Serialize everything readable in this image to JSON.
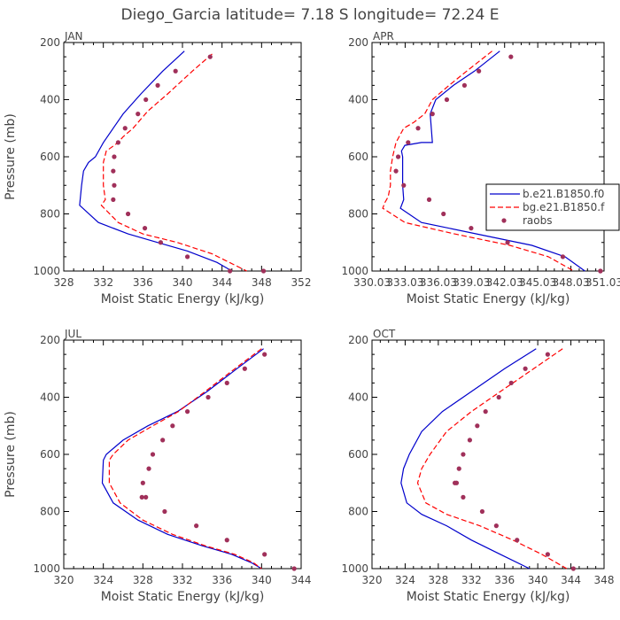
{
  "page_title": "Diego_Garcia   latitude= 7.18 S longitude= 72.24 E",
  "chart_data": [
    {
      "type": "line",
      "title": "JAN",
      "xlabel": "Moist Static Energy (kJ/kg)",
      "ylabel": "Pressure (mb)",
      "xlim": [
        328,
        352
      ],
      "ylim": [
        1000,
        200
      ],
      "y_inverted": true,
      "x_tick_labels": [
        "328",
        "332",
        "336",
        "340",
        "344",
        "348",
        "352"
      ],
      "x_ticks": [
        328,
        332,
        336,
        340,
        344,
        348,
        352
      ],
      "y_tick_labels": [
        "200",
        "400",
        "600",
        "800",
        "1000"
      ],
      "y_ticks": [
        200,
        400,
        600,
        800,
        1000
      ],
      "series": [
        {
          "style": "solid",
          "color": "#0000cc",
          "x": [
            340.2,
            338.0,
            335.8,
            334.0,
            333.0,
            332.0,
            331.2,
            330.5,
            330.0,
            329.8,
            329.6,
            331.5,
            334.5,
            337.5,
            340.5,
            343.5,
            345.0
          ],
          "y": [
            230,
            300,
            380,
            450,
            500,
            550,
            600,
            620,
            650,
            700,
            770,
            830,
            870,
            900,
            930,
            970,
            1000
          ]
        },
        {
          "style": "dashed",
          "color": "#ff0000",
          "x": [
            343.0,
            341.0,
            338.5,
            336.5,
            335.0,
            334.0,
            333.5,
            332.3,
            332.0,
            332.0,
            332.2,
            331.8,
            333.5,
            336.0,
            339.5,
            343.0,
            346.5
          ],
          "y": [
            240,
            300,
            380,
            440,
            500,
            530,
            550,
            580,
            620,
            700,
            750,
            770,
            830,
            870,
            900,
            940,
            1000
          ]
        },
        {
          "style": "markers",
          "color": "#a0305a",
          "x": [
            342.8,
            339.3,
            337.5,
            336.3,
            335.5,
            334.2,
            333.5,
            333.1,
            333.0,
            333.1,
            333.0,
            334.5,
            336.2,
            337.8,
            340.5,
            344.8,
            348.2
          ],
          "y": [
            250,
            300,
            350,
            400,
            450,
            500,
            550,
            600,
            650,
            700,
            750,
            800,
            850,
            900,
            950,
            1000,
            1000
          ]
        }
      ]
    },
    {
      "type": "line",
      "title": "APR",
      "xlabel": "Moist Static Energy (kJ/kg)",
      "ylabel": "",
      "xlim": [
        330.03,
        351.03
      ],
      "ylim": [
        1000,
        200
      ],
      "y_inverted": true,
      "x_tick_labels": [
        "330.03",
        "333.03",
        "336.03",
        "339.03",
        "342.03",
        "345.03",
        "348.03",
        "351.03"
      ],
      "x_ticks": [
        330.03,
        333.03,
        336.03,
        339.03,
        342.03,
        345.03,
        348.03,
        351.03
      ],
      "y_tick_labels": [
        "200",
        "400",
        "600",
        "800",
        "1000"
      ],
      "y_ticks": [
        200,
        400,
        600,
        800,
        1000
      ],
      "legend_location": "right",
      "legend": [
        "b.e21.B1850.f0",
        "bg.e21.B1850.f",
        "raobs"
      ],
      "series": [
        {
          "name": "b.e21.B1850.f0",
          "style": "solid",
          "color": "#0000cc",
          "x": [
            341.6,
            339.3,
            337.4,
            335.8,
            335.3,
            335.5,
            334.5,
            333.0,
            332.7,
            332.8,
            332.8,
            332.8,
            332.9,
            332.6,
            334.5,
            339.5,
            344.5,
            347.5,
            349.3
          ],
          "y": [
            230,
            300,
            350,
            400,
            450,
            550,
            550,
            560,
            580,
            600,
            650,
            700,
            750,
            780,
            830,
            870,
            910,
            950,
            1000
          ]
        },
        {
          "name": "bg.e21.B1850.f",
          "style": "dashed",
          "color": "#ff0000",
          "x": [
            340.9,
            338.6,
            337.0,
            335.5,
            334.8,
            333.8,
            332.9,
            332.2,
            331.9,
            331.7,
            331.7,
            331.5,
            331.2,
            331.0,
            333.0,
            337.5,
            342.5,
            346.0,
            348.3
          ],
          "y": [
            230,
            300,
            350,
            400,
            450,
            480,
            500,
            550,
            600,
            650,
            700,
            740,
            760,
            780,
            830,
            870,
            910,
            950,
            1000
          ]
        },
        {
          "name": "raobs",
          "style": "markers",
          "color": "#a0305a",
          "x": [
            342.6,
            339.7,
            338.4,
            336.8,
            335.5,
            334.2,
            333.3,
            332.4,
            332.2,
            332.9,
            335.2,
            336.5,
            339.0,
            342.3,
            347.3,
            350.7,
            350.7
          ],
          "y": [
            250,
            300,
            350,
            400,
            450,
            500,
            550,
            600,
            650,
            700,
            750,
            800,
            850,
            900,
            950,
            1000,
            1000
          ]
        }
      ]
    },
    {
      "type": "line",
      "title": "JUL",
      "xlabel": "Moist Static Energy (kJ/kg)",
      "ylabel": "Pressure (mb)",
      "xlim": [
        320,
        344
      ],
      "ylim": [
        1000,
        200
      ],
      "y_inverted": true,
      "x_tick_labels": [
        "320",
        "324",
        "328",
        "332",
        "336",
        "340",
        "344"
      ],
      "x_ticks": [
        320,
        324,
        328,
        332,
        336,
        340,
        344
      ],
      "y_tick_labels": [
        "200",
        "400",
        "600",
        "800",
        "1000"
      ],
      "y_ticks": [
        200,
        400,
        600,
        800,
        1000
      ],
      "series": [
        {
          "style": "solid",
          "color": "#0000cc",
          "x": [
            340.2,
            337.5,
            334.5,
            331.5,
            328.5,
            326.0,
            324.3,
            324.0,
            323.9,
            325.0,
            327.5,
            330.5,
            334.0,
            337.0,
            339.0,
            340.0
          ],
          "y": [
            230,
            300,
            380,
            450,
            500,
            550,
            600,
            620,
            700,
            770,
            830,
            880,
            920,
            950,
            980,
            1000
          ]
        },
        {
          "style": "dashed",
          "color": "#ff0000",
          "x": [
            340.0,
            337.3,
            334.3,
            331.6,
            329.0,
            326.5,
            325.0,
            324.6,
            324.6,
            325.7,
            328.0,
            331.0,
            334.3,
            337.3,
            339.2,
            340.0
          ],
          "y": [
            230,
            300,
            380,
            450,
            500,
            550,
            600,
            620,
            700,
            770,
            830,
            880,
            920,
            950,
            980,
            1000
          ]
        },
        {
          "style": "markers",
          "color": "#a0305a",
          "x": [
            340.3,
            338.3,
            336.5,
            334.6,
            332.5,
            331.0,
            330.0,
            329.0,
            328.6,
            328.0,
            327.9,
            328.3,
            330.2,
            333.4,
            336.5,
            340.3,
            343.3
          ],
          "y": [
            250,
            300,
            350,
            400,
            450,
            500,
            550,
            600,
            650,
            700,
            750,
            750,
            800,
            850,
            900,
            950,
            1000
          ]
        }
      ]
    },
    {
      "type": "line",
      "title": "OCT",
      "xlabel": "Moist Static Energy (kJ/kg)",
      "ylabel": "",
      "xlim": [
        320,
        348
      ],
      "ylim": [
        1000,
        200
      ],
      "y_inverted": true,
      "x_tick_labels": [
        "320",
        "324",
        "328",
        "332",
        "336",
        "340",
        "344",
        "348"
      ],
      "x_ticks": [
        320,
        324,
        328,
        332,
        336,
        340,
        344,
        348
      ],
      "y_tick_labels": [
        "200",
        "400",
        "600",
        "800",
        "1000"
      ],
      "y_ticks": [
        200,
        400,
        600,
        800,
        1000
      ],
      "series": [
        {
          "style": "solid",
          "color": "#0000cc",
          "x": [
            339.8,
            336.0,
            332.0,
            328.5,
            326.0,
            324.5,
            323.8,
            323.5,
            324.2,
            326.0,
            329.0,
            332.0,
            335.5,
            339.0
          ],
          "y": [
            230,
            300,
            380,
            450,
            520,
            600,
            650,
            700,
            770,
            810,
            850,
            900,
            950,
            1000
          ]
        },
        {
          "style": "dashed",
          "color": "#ff0000",
          "x": [
            343.0,
            339.5,
            335.5,
            332.0,
            329.0,
            327.0,
            326.0,
            325.5,
            326.5,
            329.0,
            333.0,
            337.0,
            340.5,
            343.5
          ],
          "y": [
            230,
            300,
            380,
            450,
            520,
            600,
            650,
            700,
            770,
            810,
            850,
            900,
            950,
            1000
          ]
        },
        {
          "style": "markers",
          "color": "#a0305a",
          "x": [
            341.2,
            338.5,
            336.8,
            335.3,
            333.7,
            332.7,
            331.8,
            331.0,
            330.5,
            330.2,
            330.0,
            331.0,
            333.3,
            335.0,
            337.5,
            341.2,
            344.3
          ],
          "y": [
            250,
            300,
            350,
            400,
            450,
            500,
            550,
            600,
            650,
            700,
            700,
            750,
            800,
            850,
            900,
            950,
            1000
          ]
        }
      ]
    }
  ]
}
